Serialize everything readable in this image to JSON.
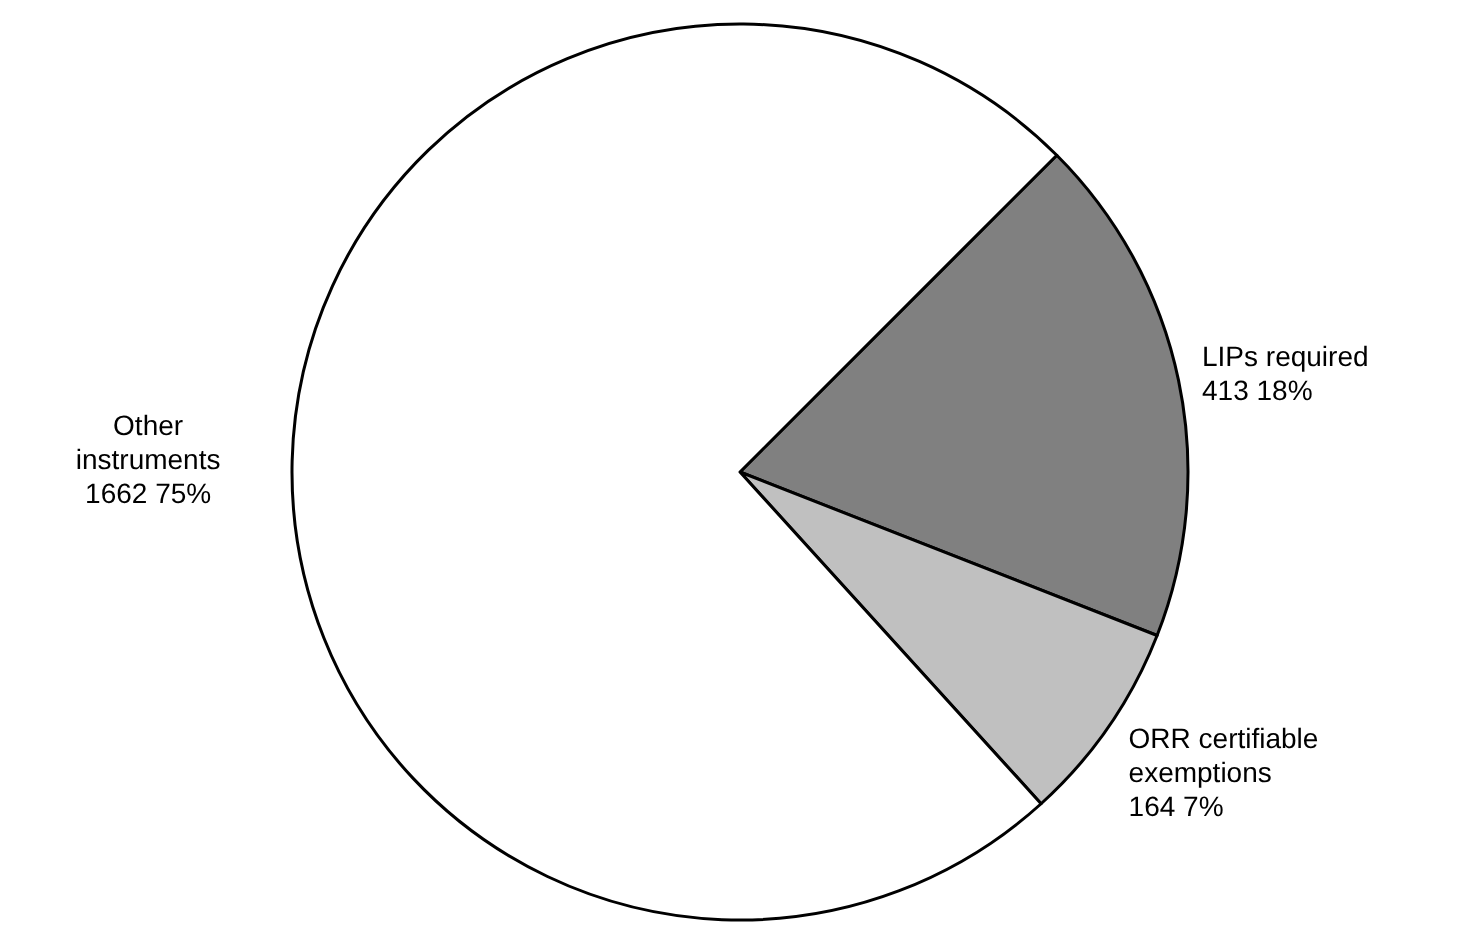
{
  "chart_data": {
    "type": "pie",
    "categories": [
      "LIPs required",
      "ORR certifiable exemptions",
      "Other instruments"
    ],
    "values": [
      413,
      164,
      1662
    ],
    "value_labels": [
      "413  18%",
      "164  7%",
      "1662  75%"
    ],
    "colors": [
      "#808080",
      "#c0c0c0",
      "#ffffff"
    ]
  }
}
